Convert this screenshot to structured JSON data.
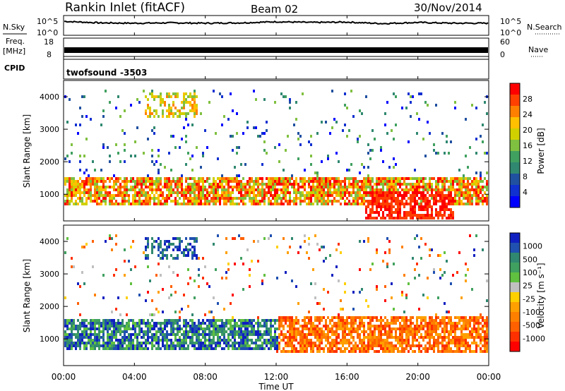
{
  "header": {
    "station": "Rankin Inlet (fitACF)",
    "beam": "Beam 02",
    "date": "30/Nov/2014"
  },
  "noise_panel": {
    "left_label": "N.Sky",
    "right_label": "N.Search",
    "tick_top": "10^5",
    "tick_bottom": "10^0"
  },
  "freq_panel": {
    "left_label_1": "Freq.",
    "left_label_2": "[MHz]",
    "right_label": "Nave",
    "left_ticks": [
      "18",
      "8"
    ],
    "right_ticks": [
      "60",
      "0"
    ]
  },
  "cpid_panel": {
    "label": "CPID",
    "program": "twofsound",
    "cpid": "-3503"
  },
  "power_panel": {
    "ylabel": "Slant Range [km]",
    "yticks": [
      "4000",
      "3000",
      "2000",
      "1000"
    ],
    "cbar_label": "Power [dB]",
    "cbar_ticks": [
      "28",
      "24",
      "20",
      "16",
      "12",
      "8",
      "4"
    ],
    "cbar_colors": [
      "#ff0000",
      "#ff4000",
      "#ff8000",
      "#ffc000",
      "#d0d000",
      "#80c040",
      "#40a060",
      "#308870",
      "#2050a0",
      "#1030d0",
      "#0000ff"
    ]
  },
  "velocity_panel": {
    "ylabel": "Slant Range [km]",
    "yticks": [
      "4000",
      "3000",
      "2000",
      "1000"
    ],
    "cbar_label": "Velocity [m s⁻¹]",
    "cbar_ticks": [
      "1000",
      "500",
      "100",
      "25",
      "-25",
      "-100",
      "-500",
      "-1000"
    ],
    "cbar_colors": [
      "#1020c0",
      "#2050b0",
      "#308870",
      "#40a060",
      "#60c040",
      "#c0c0c0",
      "#ffd000",
      "#ffa000",
      "#ff8000",
      "#ff6000",
      "#ff3000",
      "#ff0000"
    ]
  },
  "xaxis": {
    "label": "Time UT",
    "ticks": [
      "00:00",
      "04:00",
      "08:00",
      "12:00",
      "16:00",
      "20:00",
      "00:00"
    ]
  },
  "chart_data": [
    {
      "type": "line",
      "title": "N.Sky / N.Search",
      "xlabel": "",
      "ylabel": "N.Sky",
      "y_scale": "log",
      "ylim": [
        "10^0",
        "10^5"
      ],
      "x_hours": [
        0,
        2,
        4,
        6,
        8,
        10,
        12,
        14,
        16,
        18,
        20,
        22,
        24
      ],
      "series": [
        {
          "name": "N.Sky",
          "values_log10": [
            3.6,
            3.2,
            3.1,
            3.2,
            3.1,
            3.2,
            3.5,
            3.3,
            3.4,
            3.0,
            3.3,
            3.1,
            3.1
          ]
        }
      ]
    },
    {
      "type": "line",
      "title": "Freq. / Nave",
      "ylabel": "Freq. [MHz]",
      "ylim": [
        8,
        18
      ],
      "x_hours": [
        0,
        24
      ],
      "series": [
        {
          "name": "Freq.",
          "values": [
            11,
            11
          ]
        }
      ]
    },
    {
      "type": "heatmap",
      "title": "Power",
      "xlabel": "Time UT",
      "ylabel": "Slant Range [km]",
      "xlim_hours": [
        0,
        24
      ],
      "ylim_km": [
        180,
        4500
      ],
      "zlabel": "Power [dB]",
      "zlim": [
        0,
        30
      ],
      "features": [
        {
          "hours": [
            0,
            24
          ],
          "range_km": [
            700,
            1600
          ],
          "dominant": "red/orange",
          "value_db": 24
        },
        {
          "hours": [
            17,
            22
          ],
          "range_km": [
            250,
            1200
          ],
          "dominant": "red",
          "value_db": 28
        },
        {
          "hours": [
            4.5,
            7.5
          ],
          "range_km": [
            3400,
            4200
          ],
          "dominant": "orange/yellow",
          "value_db": 18
        }
      ]
    },
    {
      "type": "heatmap",
      "title": "Velocity",
      "xlabel": "Time UT",
      "ylabel": "Slant Range [km]",
      "xlim_hours": [
        0,
        24
      ],
      "ylim_km": [
        180,
        4500
      ],
      "zlabel": "Velocity [m s-1]",
      "zlim": [
        -1000,
        1000
      ],
      "features": [
        {
          "hours": [
            0,
            12
          ],
          "range_km": [
            700,
            1700
          ],
          "dominant": "blue/green",
          "value_ms": 300
        },
        {
          "hours": [
            12,
            24
          ],
          "range_km": [
            600,
            1800
          ],
          "dominant": "orange",
          "value_ms": -200
        },
        {
          "hours": [
            4.5,
            7.5
          ],
          "range_km": [
            3500,
            4200
          ],
          "dominant": "blue",
          "value_ms": 500
        }
      ]
    }
  ]
}
